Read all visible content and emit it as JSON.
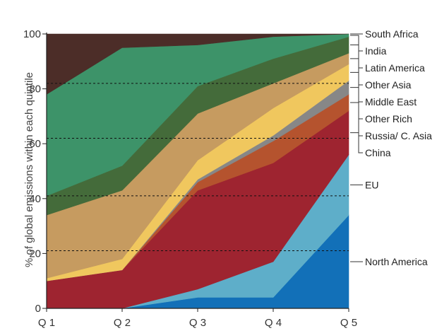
{
  "chart_data": {
    "type": "area",
    "stacked": true,
    "title": "",
    "xlabel": "",
    "ylabel": "% of global emissions within each quintile",
    "categories": [
      "Q 1",
      "Q 2",
      "Q 3",
      "Q 4",
      "Q 5"
    ],
    "ylim": [
      0,
      100
    ],
    "yticks": [
      0,
      20,
      40,
      60,
      80,
      100
    ],
    "grid": "dashed lines at 21, 41, 62, 82",
    "dashed_lines": [
      21,
      41,
      62,
      82
    ],
    "series": [
      {
        "name": "North America",
        "color": "#1270b8",
        "values": [
          0,
          0,
          4,
          4,
          34
        ]
      },
      {
        "name": "EU",
        "color": "#5eaec9",
        "values": [
          0,
          0,
          3,
          13,
          22
        ]
      },
      {
        "name": "China",
        "color": "#9e2430",
        "values": [
          10,
          14,
          36,
          36,
          16
        ]
      },
      {
        "name": "Russia/ C. Asia",
        "color": "#b5532e",
        "values": [
          0,
          0,
          3,
          8,
          6
        ]
      },
      {
        "name": "Other Rich",
        "color": "#878787",
        "values": [
          0,
          0,
          1,
          2,
          5
        ]
      },
      {
        "name": "Middle East",
        "color": "#f0c75e",
        "values": [
          1,
          4,
          7,
          10,
          6
        ]
      },
      {
        "name": "Other Asia",
        "color": "#c69b60",
        "values": [
          23,
          25,
          17,
          9,
          4
        ]
      },
      {
        "name": "Latin America",
        "color": "#446b3a",
        "values": [
          7,
          9,
          10,
          9,
          6
        ]
      },
      {
        "name": "India",
        "color": "#3d9369",
        "values": [
          37,
          43,
          15,
          8,
          1
        ]
      },
      {
        "name": "South Africa",
        "color": "#4c2d28",
        "values": [
          22,
          5,
          4,
          1,
          0
        ]
      }
    ]
  }
}
